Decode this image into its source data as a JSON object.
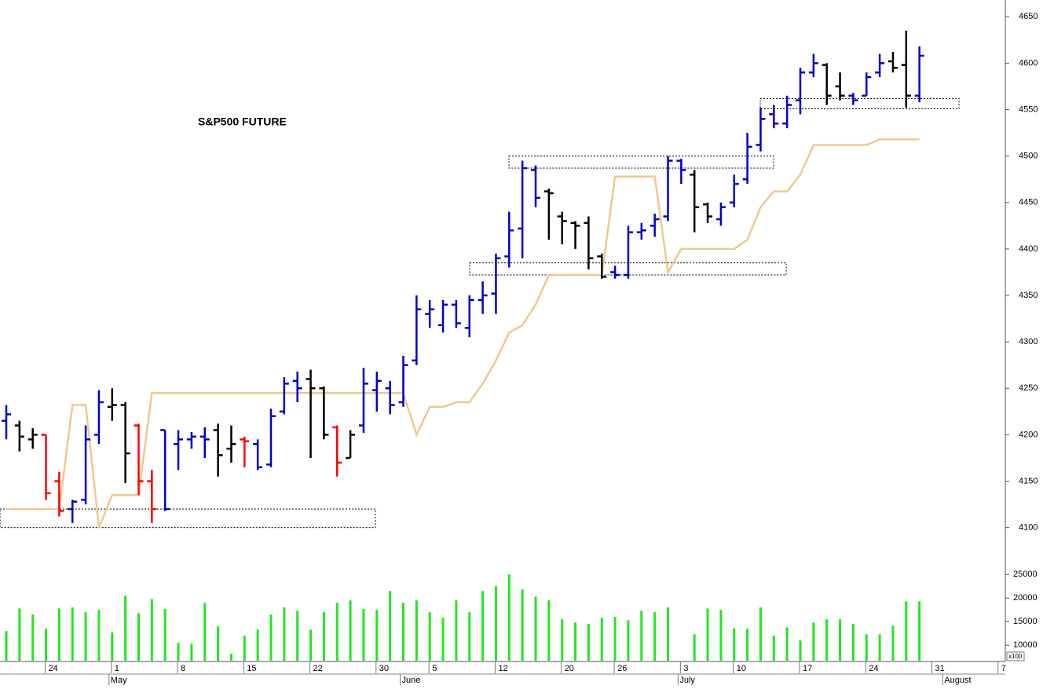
{
  "chart_data": {
    "type": "ohlc",
    "title": "S&P500 FUTURE",
    "categories": [
      null,
      null,
      null,
      "24",
      null,
      null,
      null,
      null,
      "1",
      null,
      null,
      null,
      null,
      "8",
      null,
      null,
      null,
      null,
      "15",
      null,
      null,
      null,
      null,
      "22",
      null,
      null,
      null,
      null,
      "30",
      null,
      null,
      null,
      "5",
      null,
      null,
      null,
      null,
      "12",
      null,
      null,
      null,
      null,
      "20",
      null,
      null,
      null,
      "26",
      null,
      null,
      null,
      null,
      "3",
      null,
      null,
      null,
      "10",
      null,
      null,
      null,
      null,
      "17",
      null,
      null,
      null,
      null,
      "24",
      null,
      null,
      null,
      null,
      "31",
      null,
      null,
      null,
      null,
      "7"
    ],
    "months": [
      null,
      null,
      null,
      null,
      null,
      null,
      null,
      null,
      "May",
      null,
      null,
      null,
      null,
      null,
      null,
      null,
      null,
      null,
      null,
      null,
      null,
      null,
      null,
      null,
      null,
      null,
      null,
      null,
      null,
      null,
      "June",
      null,
      null,
      null,
      null,
      null,
      null,
      null,
      null,
      null,
      null,
      null,
      null,
      null,
      null,
      null,
      null,
      null,
      null,
      null,
      null,
      "July",
      null,
      null,
      null,
      null,
      null,
      null,
      null,
      null,
      null,
      null,
      null,
      null,
      null,
      null,
      null,
      null,
      null,
      null,
      null,
      "August",
      null,
      null,
      null,
      null
    ],
    "ohlc": {
      "open": [
        4215,
        4210,
        4195,
        4200,
        4150,
        4120,
        4130,
        4200,
        4230,
        4232,
        4210,
        4150,
        4205,
        4190,
        4195,
        4198,
        4205,
        4185,
        4195,
        4190,
        4168,
        4225,
        4258,
        4260,
        4250,
        4208,
        4175,
        4210,
        4248,
        4250,
        4235,
        4280,
        4330,
        4318,
        4340,
        4315,
        4345,
        4352,
        4392,
        4422,
        4485,
        4462,
        4435,
        4428,
        4428,
        4392,
        4375,
        4372,
        4418,
        4425,
        4435,
        4495,
        4480,
        4448,
        4432,
        4450,
        4475,
        4512,
        4545,
        4535,
        4560,
        4590,
        4598,
        4575,
        4565,
        4565,
        4590,
        4602,
        4598,
        4565
      ],
      "high": [
        4232,
        4215,
        4207,
        4200,
        4160,
        4130,
        4210,
        4248,
        4250,
        4235,
        4212,
        4162,
        4205,
        4205,
        4203,
        4208,
        4212,
        4210,
        4198,
        4195,
        4228,
        4262,
        4268,
        4270,
        4252,
        4210,
        4205,
        4272,
        4268,
        4258,
        4285,
        4350,
        4345,
        4345,
        4345,
        4350,
        4365,
        4395,
        4440,
        4495,
        4490,
        4465,
        4440,
        4430,
        4435,
        4395,
        4382,
        4425,
        4428,
        4438,
        4500,
        4497,
        4485,
        4450,
        4450,
        4480,
        4525,
        4552,
        4555,
        4565,
        4595,
        4610,
        4600,
        4590,
        4568,
        4590,
        4610,
        4612,
        4635,
        4618
      ],
      "low": [
        4195,
        4182,
        4185,
        4130,
        4112,
        4105,
        4125,
        4190,
        4215,
        4148,
        4135,
        4105,
        4118,
        4162,
        4185,
        4175,
        4155,
        4170,
        4165,
        4162,
        4165,
        4222,
        4235,
        4175,
        4195,
        4155,
        4175,
        4202,
        4225,
        4222,
        4230,
        4275,
        4315,
        4310,
        4315,
        4305,
        4330,
        4330,
        4380,
        4390,
        4445,
        4410,
        4405,
        4400,
        4378,
        4368,
        4368,
        4368,
        4410,
        4413,
        4430,
        4470,
        4418,
        4428,
        4425,
        4445,
        4470,
        4505,
        4530,
        4530,
        4545,
        4585,
        4555,
        4560,
        4555,
        4565,
        4585,
        4590,
        4552,
        4558
      ],
      "close": [
        4222,
        4198,
        4200,
        4137,
        4118,
        4128,
        4195,
        4235,
        4232,
        4180,
        4150,
        4120,
        4120,
        4195,
        4198,
        4195,
        4178,
        4190,
        4193,
        4165,
        4220,
        4255,
        4250,
        4250,
        4200,
        4170,
        4200,
        4255,
        4258,
        4232,
        4275,
        4335,
        4335,
        4340,
        4320,
        4345,
        4350,
        4390,
        4420,
        4487,
        4455,
        4460,
        4430,
        4425,
        4390,
        4370,
        4372,
        4418,
        4420,
        4432,
        4495,
        4485,
        4445,
        4435,
        4445,
        4470,
        4510,
        4540,
        4535,
        4555,
        4590,
        4600,
        4565,
        4565,
        4560,
        4585,
        4600,
        4595,
        4565,
        4608
      ],
      "colors": [
        "mediumblue",
        "black",
        "black",
        "red",
        "red",
        "mediumblue",
        "mediumblue",
        "mediumblue",
        "black",
        "black",
        "red",
        "red",
        "mediumblue",
        "mediumblue",
        "mediumblue",
        "mediumblue",
        "black",
        "black",
        "red",
        "mediumblue",
        "mediumblue",
        "mediumblue",
        "mediumblue",
        "black",
        "black",
        "red",
        "black",
        "mediumblue",
        "mediumblue",
        "mediumblue",
        "mediumblue",
        "mediumblue",
        "mediumblue",
        "mediumblue",
        "mediumblue",
        "mediumblue",
        "mediumblue",
        "mediumblue",
        "mediumblue",
        "mediumblue",
        "mediumblue",
        "black",
        "black",
        "black",
        "black",
        "black",
        "mediumblue",
        "mediumblue",
        "mediumblue",
        "mediumblue",
        "mediumblue",
        "mediumblue",
        "black",
        "black",
        "mediumblue",
        "mediumblue",
        "mediumblue",
        "mediumblue",
        "mediumblue",
        "mediumblue",
        "mediumblue",
        "mediumblue",
        "black",
        "black",
        "mediumblue",
        "mediumblue",
        "mediumblue",
        "black",
        "black",
        "mediumblue"
      ]
    },
    "line": {
      "color": "#f5c68c",
      "values": [
        4120,
        4120,
        4120,
        4120,
        4120,
        4232,
        4232,
        4100,
        4135,
        4135,
        4135,
        4245,
        4245,
        4245,
        4245,
        4245,
        4245,
        4245,
        4245,
        4245,
        4245,
        4245,
        4245,
        4245,
        4245,
        4245,
        4245,
        4245,
        4245,
        4245,
        4245,
        4200,
        4230,
        4230,
        4235,
        4235,
        4255,
        4280,
        4310,
        4318,
        4340,
        4372,
        4372,
        4372,
        4372,
        4372,
        4478,
        4478,
        4478,
        4478,
        4375,
        4400,
        4400,
        4400,
        4400,
        4400,
        4410,
        4445,
        4462,
        4462,
        4480,
        4512,
        4512,
        4512,
        4512,
        4512,
        4518,
        4518,
        4518,
        4518
      ]
    },
    "zones": [
      {
        "low": 4100,
        "high": 4120
      },
      {
        "low": 4372,
        "high": 4385
      },
      {
        "low": 4487,
        "high": 4500
      },
      {
        "low": 4551,
        "high": 4562
      }
    ],
    "ylim": [
      4076,
      4668
    ],
    "yticks": [
      4100,
      4150,
      4200,
      4250,
      4300,
      4350,
      4400,
      4450,
      4500,
      4550,
      4600,
      4650
    ],
    "volume": {
      "type": "bar",
      "color": "#22e622",
      "unit_label": "x100",
      "values": [
        13000,
        17800,
        16500,
        13500,
        17800,
        18000,
        17000,
        17500,
        12700,
        20500,
        16800,
        19800,
        17700,
        10500,
        10300,
        19000,
        14000,
        8200,
        12000,
        13300,
        16500,
        18000,
        17300,
        13300,
        17000,
        19000,
        19500,
        17700,
        17500,
        21500,
        19000,
        19500,
        17000,
        15800,
        19500,
        17000,
        21500,
        22500,
        25000,
        21800,
        20300,
        19500,
        15500,
        14800,
        14500,
        15800,
        16000,
        15300,
        17300,
        17000,
        18000,
        null,
        12300,
        17800,
        17500,
        13600,
        13500,
        18000,
        12000,
        13800,
        11000,
        14800,
        15500,
        15500,
        14500,
        12300,
        12300,
        14100,
        19300,
        19300
      ],
      "ylim": [
        6700,
        30200
      ],
      "yticks": [
        10000,
        15000,
        20000,
        25000
      ]
    }
  }
}
